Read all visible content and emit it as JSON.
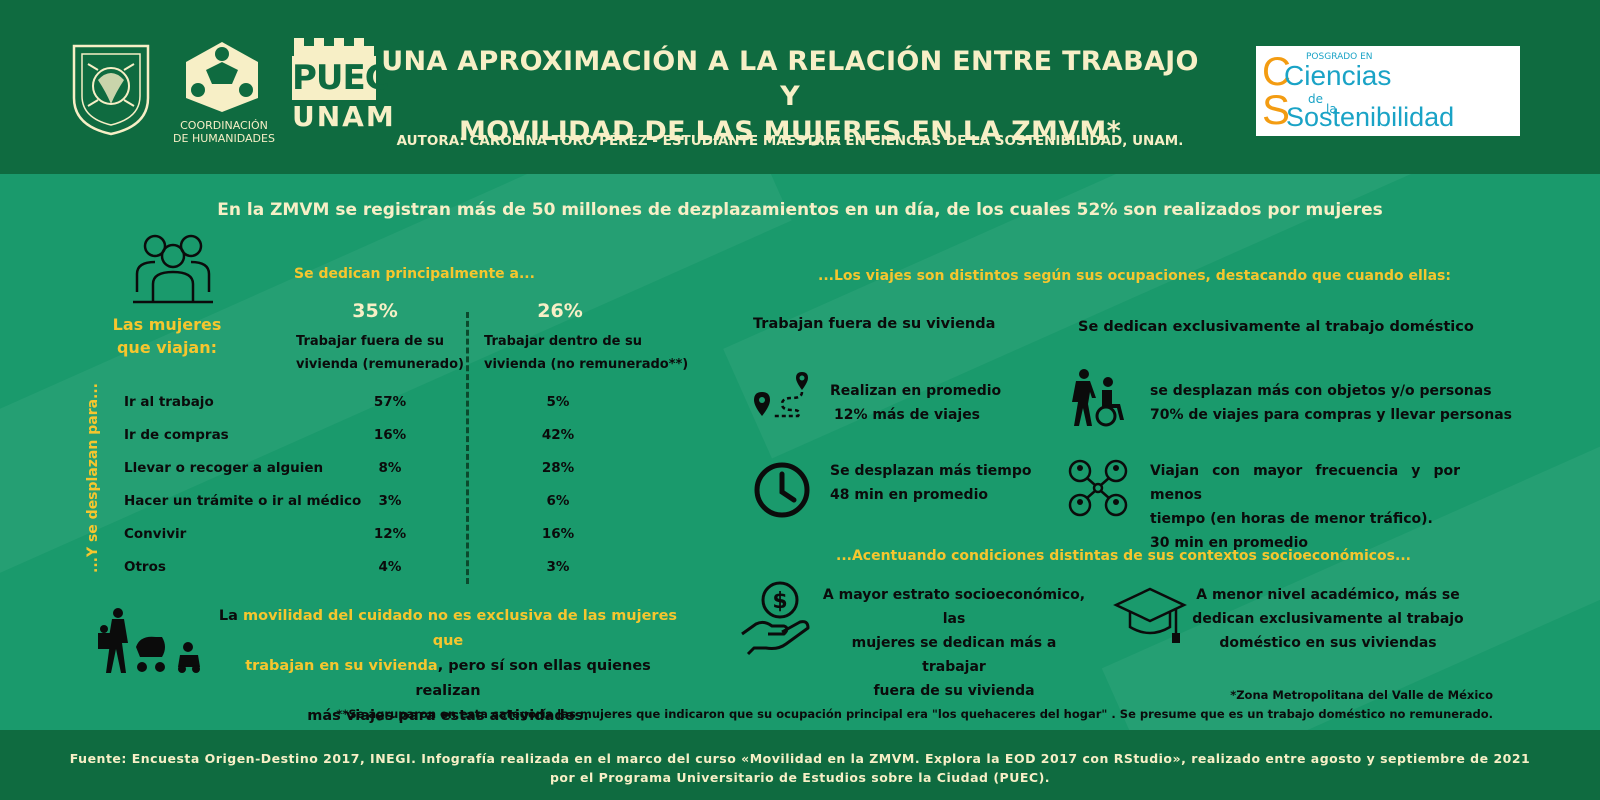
{
  "header": {
    "title_line1": "UNA APROXIMACIÓN A LA RELACIÓN ENTRE TRABAJO Y",
    "title_line2": "MOVILIDAD DE LAS MUJERES EN LA ZMVM*",
    "author": "AUTORA: CAROLINA TORO PÉREZ - ESTUDIANTE MAESTRÍA EN CIENCIAS DE LA SOSTENIBILIDAD, UNAM.",
    "logos": {
      "unam_seal": "UNIVERSIDAD NACIONAL AUTÓNOMA DE MÉXICO",
      "humanidades_line1": "COORDINACIÓN",
      "humanidades_line2": "DE HUMANIDADES",
      "puec_top": "PUEC",
      "puec_bottom": "UNAM",
      "posgrado_small": "POSGRADO EN",
      "ciencias": "Ciencias",
      "de_la_1": "de",
      "de_la_2": "la",
      "sostenibilidad": "Sostenibilidad"
    }
  },
  "lead": "En la ZMVM se registran más de 50 millones de dezplazamientos en un día,  de los cuales 52% son realizados por mujeres",
  "left": {
    "heading": "Se dedican principalmente a...",
    "women_label_line1": "Las mujeres",
    "women_label_line2": "que viajan:",
    "vertical_label": "...Y se desplazan para...",
    "col1": {
      "pct": "35%",
      "label_line1": "Trabajar fuera de su",
      "label_line2": "vivienda (remunerado)"
    },
    "col2": {
      "pct": "26%",
      "label_line1": "Trabajar dentro de su",
      "label_line2": "vivienda (no remunerado**)"
    },
    "rows": [
      {
        "label": "Ir al trabajo",
        "v1": "57%",
        "v2": "5%"
      },
      {
        "label": "Ir de compras",
        "v1": "16%",
        "v2": "42%"
      },
      {
        "label": "Llevar o recoger a alguien",
        "v1": "8%",
        "v2": "28%"
      },
      {
        "label": "Hacer un trámite o ir al médico",
        "v1": "3%",
        "v2": "6%"
      },
      {
        "label": "Convivir",
        "v1": "12%",
        "v2": "16%"
      },
      {
        "label": "Otros",
        "v1": "4%",
        "v2": "3%"
      }
    ],
    "care": {
      "p1": "La ",
      "p2": "movilidad del cuidado no es exclusiva de las mujeres que",
      "p3": "trabajan en su vivienda",
      "p4": ", pero sí son ellas quienes realizan",
      "p5": "más viajes para estas actividades."
    }
  },
  "right": {
    "heading": "...Los viajes son distintos según sus ocupaciones, destacando que cuando ellas:",
    "col_a_title": "Trabajan fuera de su vivienda",
    "col_b_title": "Se dedican exclusivamente al trabajo doméstico",
    "a1_line1": "Realizan en promedio",
    "a1_line2": "12% más de viajes",
    "a2_line1": "Se desplazan más tiempo",
    "a2_line2": "48 min en promedio",
    "b1_line1": "se desplazan más con objetos y/o personas",
    "b1_line2": "70% de viajes para compras y llevar personas",
    "b2_line1": "Viajan con mayor frecuencia y por menos",
    "b2_line2": "tiempo (en horas de menor tráfico).",
    "b2_line3": "30 min en promedio",
    "socio_heading": "...Acentuando condiciones distintas de sus contextos socioeconómicos...",
    "s1_line1": "A mayor estrato socioeconómico, las",
    "s1_line2": "mujeres se dedican más a trabajar",
    "s1_line3": "fuera de su vivienda",
    "s2_line1": "A menor nivel académico, más se",
    "s2_line2": "dedican exclusivamente al trabajo",
    "s2_line3": "doméstico en sus viviendas"
  },
  "notes": {
    "n1": "*Zona Metropolitana del Valle de México",
    "n2": "**Se agruparon en esta categoría las mujeres que indicaron que su ocupación principal era \"los quehaceres del hogar\" . Se presume que es un trabajo doméstico no remunerado."
  },
  "footer": {
    "line1": "Fuente: Encuesta Origen-Destino 2017, INEGI. Infografía realizada en el marco del curso «Movilidad en la ZMVM. Explora la EOD 2017 con RStudio», realizado entre agosto y septiembre de 2021",
    "line2": "por el Programa Universitario de Estudios sobre la Ciudad (PUEC)."
  },
  "colors": {
    "header_green": "#0f6b40",
    "body_green": "#1a9a6c",
    "accent_yellow": "#f6c62e",
    "cream_text": "#f7efc6",
    "dark_text": "#0b0b0b"
  },
  "icons": [
    "unam-seal-icon",
    "humanidades-logo-icon",
    "puec-tower-icon",
    "women-group-icon",
    "route-pin-icon",
    "clock-icon",
    "caregiver-wheelchair-icon",
    "network-people-icon",
    "money-hand-icon",
    "graduation-cap-icon",
    "mother-stroller-icon"
  ]
}
